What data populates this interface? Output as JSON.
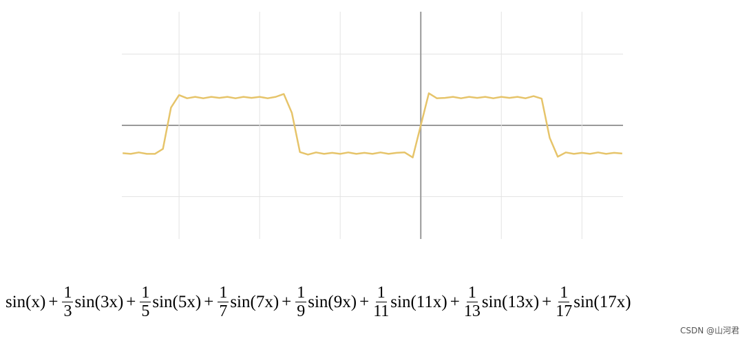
{
  "chart_data": {
    "type": "line",
    "x": [
      -7.4,
      -7.2,
      -7.0,
      -6.8,
      -6.6,
      -6.4,
      -6.2,
      -6.0,
      -5.8,
      -5.6,
      -5.4,
      -5.2,
      -5.0,
      -4.8,
      -4.6,
      -4.4,
      -4.2,
      -4.0,
      -3.8,
      -3.6,
      -3.4,
      -3.2,
      -3.0,
      -2.8,
      -2.6,
      -2.4,
      -2.2,
      -2.0,
      -1.8,
      -1.6,
      -1.4,
      -1.2,
      -1.0,
      -0.8,
      -0.6,
      -0.4,
      -0.2,
      0.0,
      0.2,
      0.4,
      0.6,
      0.8,
      1.0,
      1.2,
      1.4,
      1.6,
      1.8,
      2.0,
      2.2,
      2.4,
      2.6,
      2.8,
      3.0,
      3.2,
      3.4,
      3.6,
      3.8,
      4.0,
      4.2,
      4.4,
      4.6,
      4.8,
      5.0
    ],
    "series": [
      {
        "color": "#e6c46a",
        "values": [
          -0.78,
          -0.8,
          -0.76,
          -0.8,
          -0.8,
          -0.66,
          0.5,
          0.85,
          0.76,
          0.8,
          0.76,
          0.8,
          0.77,
          0.8,
          0.76,
          0.8,
          0.77,
          0.8,
          0.76,
          0.8,
          0.88,
          0.35,
          -0.75,
          -0.82,
          -0.76,
          -0.8,
          -0.77,
          -0.8,
          -0.76,
          -0.8,
          -0.77,
          -0.8,
          -0.76,
          -0.8,
          -0.77,
          -0.76,
          -0.9,
          0.0,
          0.9,
          0.76,
          0.77,
          0.8,
          0.76,
          0.8,
          0.77,
          0.8,
          0.76,
          0.8,
          0.77,
          0.8,
          0.76,
          0.82,
          0.75,
          -0.35,
          -0.88,
          -0.76,
          -0.8,
          -0.77,
          -0.8,
          -0.76,
          -0.8,
          -0.77,
          -0.79
        ]
      }
    ],
    "xlim": [
      -7.42,
      5.02
    ],
    "ylim": [
      -3.19,
      3.19
    ],
    "grid_x": [
      -6,
      -4,
      -2,
      0,
      2,
      4
    ],
    "grid_y": [
      -2,
      0,
      2
    ]
  },
  "formula": {
    "operator": "+",
    "terms": [
      {
        "expr": "sin(x)"
      },
      {
        "num": "1",
        "den": "3",
        "expr": "sin(3x)"
      },
      {
        "num": "1",
        "den": "5",
        "expr": "sin(5x)"
      },
      {
        "num": "1",
        "den": "7",
        "expr": "sin(7x)"
      },
      {
        "num": "1",
        "den": "9",
        "expr": "sin(9x)"
      },
      {
        "num": "1",
        "den": "11",
        "expr": "sin(11x)"
      },
      {
        "num": "1",
        "den": "13",
        "expr": "sin(13x)"
      },
      {
        "num": "1",
        "den": "17",
        "expr": "sin(17x)"
      }
    ]
  },
  "watermark": "CSDN @山河君"
}
